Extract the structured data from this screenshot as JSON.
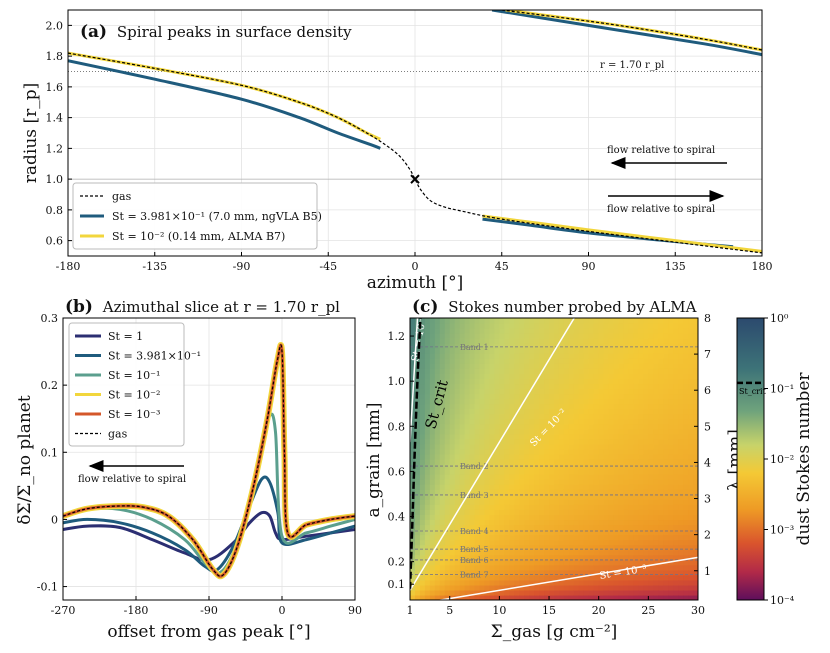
{
  "chart_data": [
    {
      "type": "line",
      "panel_label": "(a)",
      "title": "Spiral peaks in surface density",
      "xlabel": "azimuth [°]",
      "ylabel": "radius [r_p]",
      "xlim": [
        -180,
        180
      ],
      "ylim": [
        0.5,
        2.1
      ],
      "xticks": [
        -180,
        -135,
        -90,
        -45,
        0,
        45,
        90,
        135,
        180
      ],
      "yticks": [
        0.6,
        0.8,
        1.0,
        1.2,
        1.4,
        1.6,
        1.8,
        2.0
      ],
      "hline_label": "r = 1.70 r_pl",
      "hline_value": 1.7,
      "planet_marker": {
        "x": 0,
        "y": 1.0
      },
      "flow_label_top": "flow relative to spiral",
      "flow_label_bottom": "flow relative to spiral",
      "legend": [
        {
          "name": "gas",
          "color": "#000000",
          "dash": true
        },
        {
          "name": "St = 3.981×10⁻¹ (7.0 mm, ngVLA B5)",
          "color": "#1f5b7d"
        },
        {
          "name": "St = 10⁻² (0.14 mm, ALMA B7)",
          "color": "#f2d63c"
        }
      ],
      "series": [
        {
          "name": "gas",
          "color": "#000000",
          "segments": [
            [
              [
                -180,
                1.82
              ],
              [
                -135,
                1.72
              ],
              [
                -90,
                1.61
              ],
              [
                -60,
                1.5
              ],
              [
                -40,
                1.4
              ],
              [
                -25,
                1.3
              ],
              [
                -15,
                1.22
              ],
              [
                -8,
                1.15
              ],
              [
                -3,
                1.07
              ],
              [
                0,
                1.0
              ],
              [
                3,
                0.93
              ],
              [
                8,
                0.86
              ],
              [
                15,
                0.82
              ],
              [
                25,
                0.79
              ],
              [
                45,
                0.74
              ],
              [
                90,
                0.66
              ],
              [
                135,
                0.59
              ],
              [
                180,
                0.52
              ]
            ],
            [
              [
                45,
                2.1
              ],
              [
                100,
                2.01
              ],
              [
                150,
                1.91
              ],
              [
                180,
                1.84
              ]
            ]
          ]
        },
        {
          "name": "St = 3.981×10⁻¹ (7.0 mm, ngVLA B5)",
          "color": "#1f5b7d",
          "segments": [
            [
              [
                -180,
                1.77
              ],
              [
                -135,
                1.65
              ],
              [
                -90,
                1.52
              ],
              [
                -60,
                1.4
              ],
              [
                -40,
                1.3
              ],
              [
                -22,
                1.22
              ],
              [
                -18,
                1.2
              ]
            ],
            [
              [
                35,
                0.74
              ],
              [
                60,
                0.7
              ],
              [
                90,
                0.65
              ],
              [
                130,
                0.6
              ],
              [
                165,
                0.56
              ]
            ],
            [
              [
                40,
                2.1
              ],
              [
                100,
                1.98
              ],
              [
                150,
                1.88
              ],
              [
                180,
                1.81
              ]
            ]
          ]
        },
        {
          "name": "St = 10⁻² (0.14 mm, ALMA B7)",
          "color": "#f2d63c",
          "segments": [
            [
              [
                -180,
                1.82
              ],
              [
                -135,
                1.72
              ],
              [
                -90,
                1.61
              ],
              [
                -60,
                1.5
              ],
              [
                -40,
                1.4
              ],
              [
                -25,
                1.3
              ],
              [
                -18,
                1.26
              ]
            ],
            [
              [
                35,
                0.76
              ],
              [
                60,
                0.72
              ],
              [
                90,
                0.67
              ],
              [
                135,
                0.6
              ],
              [
                180,
                0.53
              ]
            ],
            [
              [
                47,
                2.1
              ],
              [
                100,
                2.01
              ],
              [
                150,
                1.91
              ],
              [
                180,
                1.84
              ]
            ]
          ]
        }
      ]
    },
    {
      "type": "line",
      "panel_label": "(b)",
      "title": "Azimuthal slice at r = 1.70 r_pl",
      "xlabel": "offset from gas peak [°]",
      "ylabel": "δΣ/Σ_no planet",
      "xlim": [
        -270,
        90
      ],
      "ylim": [
        -0.12,
        0.3
      ],
      "xticks": [
        -270,
        -180,
        -90,
        0,
        90
      ],
      "yticks": [
        -0.1,
        0,
        0.1,
        0.2,
        0.3
      ],
      "flow_label": "flow relative to spiral",
      "legend": [
        "St = 1",
        "St = 3.981×10⁻¹",
        "St = 10⁻¹",
        "St = 10⁻²",
        "St = 10⁻³",
        "gas"
      ],
      "series": [
        {
          "name": "St = 1",
          "color": "#2b2e72",
          "points": [
            [
              -270,
              -0.015
            ],
            [
              -240,
              -0.01
            ],
            [
              -200,
              -0.012
            ],
            [
              -160,
              -0.03
            ],
            [
              -120,
              -0.05
            ],
            [
              -90,
              -0.06
            ],
            [
              -60,
              -0.035
            ],
            [
              -40,
              -0.005
            ],
            [
              -25,
              0.01
            ],
            [
              -15,
              0.005
            ],
            [
              -8,
              -0.02
            ],
            [
              0,
              -0.03
            ],
            [
              30,
              -0.025
            ],
            [
              60,
              -0.02
            ],
            [
              90,
              -0.015
            ]
          ]
        },
        {
          "name": "St = 3.981×10⁻¹",
          "color": "#1f5b7d",
          "points": [
            [
              -270,
              -0.005
            ],
            [
              -240,
              0.0
            ],
            [
              -200,
              -0.005
            ],
            [
              -160,
              -0.02
            ],
            [
              -120,
              -0.045
            ],
            [
              -95,
              -0.07
            ],
            [
              -80,
              -0.075
            ],
            [
              -60,
              -0.04
            ],
            [
              -40,
              0.02
            ],
            [
              -25,
              0.06
            ],
            [
              -15,
              0.055
            ],
            [
              -5,
              0.01
            ],
            [
              0,
              -0.035
            ],
            [
              30,
              -0.03
            ],
            [
              60,
              -0.02
            ],
            [
              90,
              -0.01
            ]
          ]
        },
        {
          "name": "St = 10⁻¹",
          "color": "#5b9f8e",
          "points": [
            [
              -270,
              0.005
            ],
            [
              -240,
              0.015
            ],
            [
              -200,
              0.015
            ],
            [
              -160,
              0.0
            ],
            [
              -120,
              -0.03
            ],
            [
              -95,
              -0.065
            ],
            [
              -78,
              -0.08
            ],
            [
              -60,
              -0.05
            ],
            [
              -40,
              0.03
            ],
            [
              -25,
              0.11
            ],
            [
              -15,
              0.155
            ],
            [
              -8,
              0.13
            ],
            [
              0,
              -0.025
            ],
            [
              30,
              -0.02
            ],
            [
              60,
              -0.01
            ],
            [
              90,
              0.0
            ]
          ]
        },
        {
          "name": "St = 10⁻²",
          "color": "#f2d63c",
          "points": [
            [
              -270,
              0.005
            ],
            [
              -240,
              0.016
            ],
            [
              -200,
              0.02
            ],
            [
              -170,
              0.018
            ],
            [
              -140,
              0.005
            ],
            [
              -110,
              -0.03
            ],
            [
              -85,
              -0.075
            ],
            [
              -72,
              -0.082
            ],
            [
              -55,
              -0.04
            ],
            [
              -35,
              0.05
            ],
            [
              -18,
              0.15
            ],
            [
              -6,
              0.235
            ],
            [
              0,
              0.25
            ],
            [
              3,
              0.1
            ],
            [
              7,
              -0.02
            ],
            [
              30,
              -0.008
            ],
            [
              60,
              0.0
            ],
            [
              90,
              0.005
            ]
          ]
        },
        {
          "name": "St = 10⁻³",
          "color": "#d4572a",
          "points": [
            [
              -270,
              0.005
            ],
            [
              -240,
              0.016
            ],
            [
              -200,
              0.02
            ],
            [
              -170,
              0.018
            ],
            [
              -140,
              0.005
            ],
            [
              -110,
              -0.03
            ],
            [
              -85,
              -0.075
            ],
            [
              -72,
              -0.082
            ],
            [
              -55,
              -0.04
            ],
            [
              -35,
              0.05
            ],
            [
              -18,
              0.15
            ],
            [
              -6,
              0.235
            ],
            [
              0,
              0.25
            ],
            [
              3,
              0.1
            ],
            [
              7,
              -0.02
            ],
            [
              30,
              -0.008
            ],
            [
              60,
              0.0
            ],
            [
              90,
              0.005
            ]
          ]
        },
        {
          "name": "gas",
          "color": "#000000",
          "dash": true,
          "points": [
            [
              -270,
              0.005
            ],
            [
              -240,
              0.016
            ],
            [
              -200,
              0.02
            ],
            [
              -170,
              0.018
            ],
            [
              -140,
              0.005
            ],
            [
              -110,
              -0.03
            ],
            [
              -85,
              -0.075
            ],
            [
              -72,
              -0.082
            ],
            [
              -55,
              -0.04
            ],
            [
              -35,
              0.05
            ],
            [
              -18,
              0.15
            ],
            [
              -6,
              0.235
            ],
            [
              0,
              0.25
            ],
            [
              3,
              0.1
            ],
            [
              7,
              -0.02
            ],
            [
              30,
              -0.008
            ],
            [
              60,
              0.0
            ],
            [
              90,
              0.005
            ]
          ]
        }
      ]
    },
    {
      "type": "heatmap",
      "panel_label": "(c)",
      "title": "Stokes number probed by ALMA",
      "xlabel": "Σ_gas [g cm⁻²]",
      "ylabel_left": "a_grain [mm]",
      "ylabel_right": "λ [mm]",
      "xlim": [
        1,
        30
      ],
      "ylim_left": [
        0.03,
        1.28
      ],
      "ylim_right": [
        0.19,
        8
      ],
      "xticks": [
        1,
        5,
        10,
        15,
        20,
        25,
        30
      ],
      "yticks_left": [
        0.1,
        0.2,
        0.4,
        0.6,
        0.8,
        1.0,
        1.2
      ],
      "yticks_right": [
        1,
        2,
        3,
        4,
        5,
        6,
        7,
        8
      ],
      "bands": [
        {
          "name": "Band 1",
          "lambda": 7.2
        },
        {
          "name": "Band 2",
          "lambda": 3.9
        },
        {
          "name": "Band 3",
          "lambda": 3.1
        },
        {
          "name": "Band 4",
          "lambda": 2.1
        },
        {
          "name": "Band 5",
          "lambda": 1.6
        },
        {
          "name": "Band 6",
          "lambda": 1.3
        },
        {
          "name": "Band 7",
          "lambda": 0.9
        }
      ],
      "contours": [
        {
          "label": "St = 10⁻¹",
          "color": "#ffffff"
        },
        {
          "label": "St = 10⁻²",
          "color": "#ffffff"
        },
        {
          "label": "St = 10⁻³",
          "color": "#ffffff"
        }
      ],
      "crit_label": "St_crit",
      "colorbar": {
        "label": "dust Stokes number",
        "ticks": [
          "10⁰",
          "10⁻¹",
          "10⁻²",
          "10⁻³",
          "10⁻⁴"
        ],
        "crit_tick_label": "St_crit",
        "range": [
          0.0001,
          1
        ]
      }
    }
  ]
}
